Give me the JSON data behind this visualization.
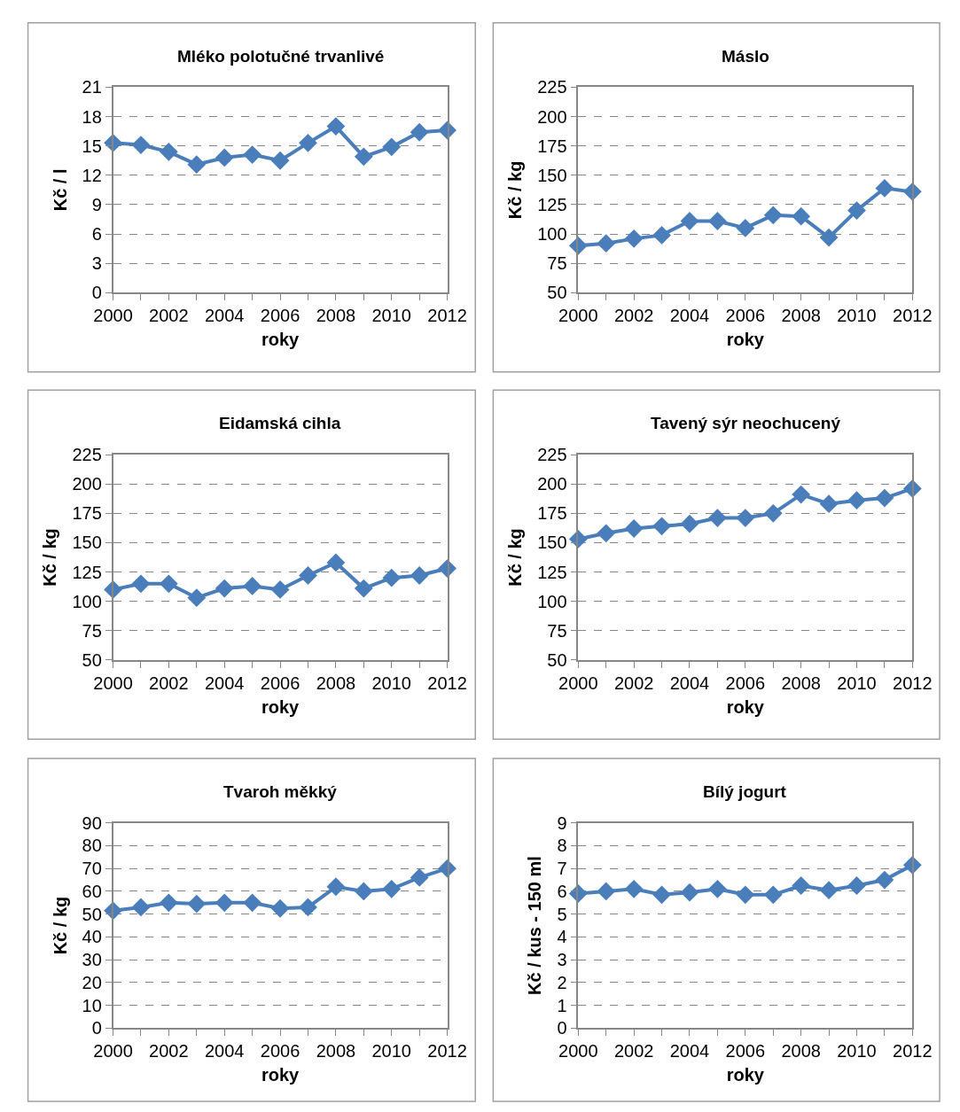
{
  "chart_data": [
    {
      "type": "line",
      "title": "Mléko polotučné trvanlivé",
      "xlabel": "roky",
      "ylabel": "Kč / l",
      "x": [
        2000,
        2001,
        2002,
        2003,
        2004,
        2005,
        2006,
        2007,
        2008,
        2009,
        2010,
        2011,
        2012
      ],
      "series": [
        {
          "color": "#4a7ebb",
          "values": [
            15.3,
            15.1,
            14.4,
            13.1,
            13.8,
            14.1,
            13.5,
            15.3,
            17.0,
            13.9,
            14.9,
            16.4,
            16.6
          ]
        }
      ],
      "xlim": [
        2000,
        2012
      ],
      "xticks": [
        2000,
        {
          "value": 2001,
          "label": null
        },
        2002,
        {
          "value": 2003,
          "label": null
        },
        2004,
        {
          "value": 2005,
          "label": null
        },
        2006,
        {
          "value": 2007,
          "label": null
        },
        2008,
        {
          "value": 2009,
          "label": null
        },
        2010,
        {
          "value": 2011,
          "label": null
        },
        2012
      ],
      "ylim": [
        0,
        21
      ],
      "yticks": [
        0,
        3,
        6,
        9,
        12,
        15,
        18,
        21
      ],
      "grid": "y",
      "marker": "diamond",
      "line_style": "solid"
    },
    {
      "type": "line",
      "title": "Máslo",
      "xlabel": "roky",
      "ylabel": "Kč / kg",
      "x": [
        2000,
        2001,
        2002,
        2003,
        2004,
        2005,
        2006,
        2007,
        2008,
        2009,
        2010,
        2011,
        2012
      ],
      "series": [
        {
          "color": "#4a7ebb",
          "values": [
            90,
            92,
            96,
            99,
            111,
            111,
            105,
            116,
            115,
            97,
            120,
            139,
            136
          ]
        }
      ],
      "xlim": [
        2000,
        2012
      ],
      "xticks": [
        2000,
        {
          "value": 2001,
          "label": null
        },
        2002,
        {
          "value": 2003,
          "label": null
        },
        2004,
        {
          "value": 2005,
          "label": null
        },
        2006,
        {
          "value": 2007,
          "label": null
        },
        2008,
        {
          "value": 2009,
          "label": null
        },
        2010,
        {
          "value": 2011,
          "label": null
        },
        2012
      ],
      "ylim": [
        50,
        225
      ],
      "yticks": [
        50,
        75,
        100,
        125,
        150,
        175,
        200,
        225
      ],
      "grid": "y",
      "marker": "diamond",
      "line_style": "solid"
    },
    {
      "type": "line",
      "title": "Eidamská cihla",
      "xlabel": "roky",
      "ylabel": "Kč / kg",
      "x": [
        2000,
        2001,
        2002,
        2003,
        2004,
        2005,
        2006,
        2007,
        2008,
        2009,
        2010,
        2011,
        2012
      ],
      "series": [
        {
          "color": "#4a7ebb",
          "values": [
            110,
            115,
            115,
            103,
            111,
            113,
            110,
            122,
            133,
            111,
            120,
            122,
            128
          ]
        }
      ],
      "xlim": [
        2000,
        2012
      ],
      "xticks": [
        2000,
        {
          "value": 2001,
          "label": null
        },
        2002,
        {
          "value": 2003,
          "label": null
        },
        2004,
        {
          "value": 2005,
          "label": null
        },
        2006,
        {
          "value": 2007,
          "label": null
        },
        2008,
        {
          "value": 2009,
          "label": null
        },
        2010,
        {
          "value": 2011,
          "label": null
        },
        2012
      ],
      "ylim": [
        50,
        225
      ],
      "yticks": [
        50,
        75,
        100,
        125,
        150,
        175,
        200,
        225
      ],
      "grid": "y",
      "marker": "diamond",
      "line_style": "solid"
    },
    {
      "type": "line",
      "title": "Tavený sýr neochucený",
      "xlabel": "roky",
      "ylabel": "Kč / kg",
      "x": [
        2000,
        2001,
        2002,
        2003,
        2004,
        2005,
        2006,
        2007,
        2008,
        2009,
        2010,
        2011,
        2012
      ],
      "series": [
        {
          "color": "#4a7ebb",
          "values": [
            153,
            158,
            162,
            164,
            166,
            171,
            171,
            175,
            191,
            183,
            186,
            188,
            196
          ]
        }
      ],
      "xlim": [
        2000,
        2012
      ],
      "xticks": [
        2000,
        {
          "value": 2001,
          "label": null
        },
        2002,
        {
          "value": 2003,
          "label": null
        },
        2004,
        {
          "value": 2005,
          "label": null
        },
        2006,
        {
          "value": 2007,
          "label": null
        },
        2008,
        {
          "value": 2009,
          "label": null
        },
        2010,
        {
          "value": 2011,
          "label": null
        },
        2012
      ],
      "ylim": [
        50,
        225
      ],
      "yticks": [
        50,
        75,
        100,
        125,
        150,
        175,
        200,
        225
      ],
      "grid": "y",
      "marker": "diamond",
      "line_style": "solid"
    },
    {
      "type": "line",
      "title": "Tvaroh měkký",
      "xlabel": "roky",
      "ylabel": "Kč / kg",
      "x": [
        2000,
        2001,
        2002,
        2003,
        2004,
        2005,
        2006,
        2007,
        2008,
        2009,
        2010,
        2011,
        2012
      ],
      "series": [
        {
          "color": "#4a7ebb",
          "values": [
            51.5,
            53,
            55,
            54.5,
            55,
            55,
            52.5,
            53,
            62,
            60,
            61,
            66,
            70
          ]
        }
      ],
      "xlim": [
        2000,
        2012
      ],
      "xticks": [
        2000,
        {
          "value": 2001,
          "label": null
        },
        2002,
        {
          "value": 2003,
          "label": null
        },
        2004,
        {
          "value": 2005,
          "label": null
        },
        2006,
        {
          "value": 2007,
          "label": null
        },
        2008,
        {
          "value": 2009,
          "label": null
        },
        2010,
        {
          "value": 2011,
          "label": null
        },
        2012
      ],
      "ylim": [
        0,
        90
      ],
      "yticks": [
        0,
        10,
        20,
        30,
        40,
        50,
        60,
        70,
        80,
        90
      ],
      "grid": "y",
      "marker": "diamond",
      "line_style": "solid"
    },
    {
      "type": "line",
      "title": "Bílý jogurt",
      "xlabel": "roky",
      "ylabel": "Kč / kus - 150 ml",
      "x": [
        2000,
        2001,
        2002,
        2003,
        2004,
        2005,
        2006,
        2007,
        2008,
        2009,
        2010,
        2011,
        2012
      ],
      "series": [
        {
          "color": "#4a7ebb",
          "values": [
            5.9,
            6.0,
            6.1,
            5.85,
            5.95,
            6.1,
            5.85,
            5.85,
            6.25,
            6.05,
            6.25,
            6.5,
            7.15
          ]
        }
      ],
      "xlim": [
        2000,
        2012
      ],
      "xticks": [
        2000,
        {
          "value": 2001,
          "label": null
        },
        2002,
        {
          "value": 2003,
          "label": null
        },
        2004,
        {
          "value": 2005,
          "label": null
        },
        2006,
        {
          "value": 2007,
          "label": null
        },
        2008,
        {
          "value": 2009,
          "label": null
        },
        2010,
        {
          "value": 2011,
          "label": null
        },
        2012
      ],
      "ylim": [
        0,
        9
      ],
      "yticks": [
        0,
        1,
        2,
        3,
        4,
        5,
        6,
        7,
        8,
        9
      ],
      "grid": "y",
      "marker": "diamond",
      "line_style": "solid"
    }
  ]
}
